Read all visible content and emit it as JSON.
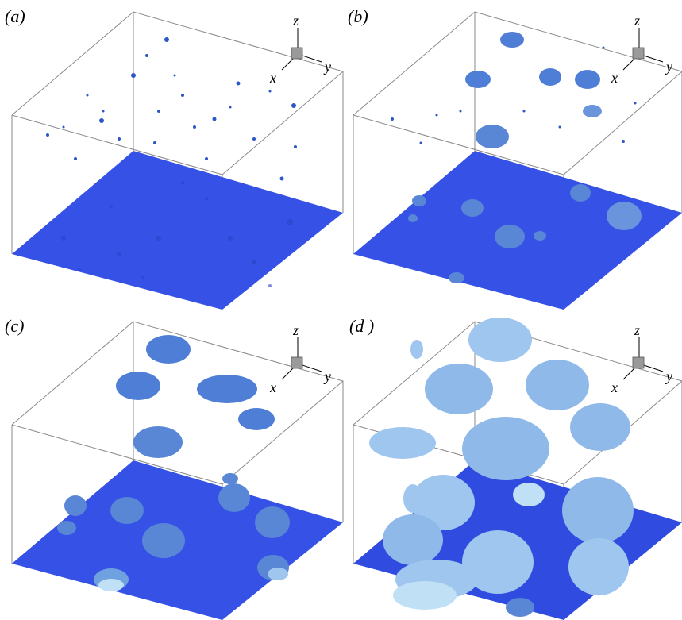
{
  "figure": {
    "panels": [
      {
        "label": "(a)",
        "axes": {
          "z": "z",
          "y": "y",
          "x": "x"
        }
      },
      {
        "label": "(b)",
        "axes": {
          "z": "z",
          "y": "y",
          "x": "x"
        }
      },
      {
        "label": "(c)",
        "axes": {
          "z": "z",
          "y": "y",
          "x": "x"
        }
      },
      {
        "label": "(d )",
        "axes": {
          "z": "z",
          "y": "y",
          "x": "x"
        }
      }
    ],
    "colors": {
      "floor": "#3551e6",
      "floor_dark": "#2a43c9",
      "bubble": "#5a86d6",
      "bubble_light": "#9fc6ee",
      "bubble_pale": "#bfe0f5",
      "box_edge": "#8a8a8a"
    }
  }
}
